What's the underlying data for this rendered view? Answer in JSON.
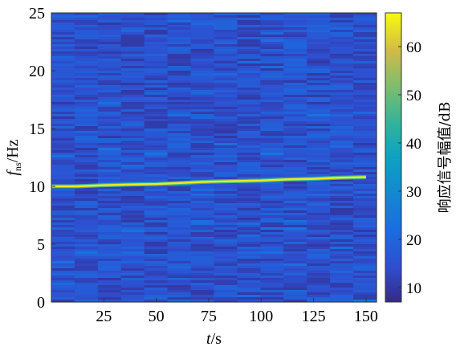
{
  "chart_data": {
    "type": "heatmap",
    "title": "",
    "xlabel_italic": "t",
    "xlabel_rest": "/s",
    "ylabel_italic": "f",
    "ylabel_sub": "ns",
    "ylabel_rest": "/Hz",
    "xlim": [
      0,
      155
    ],
    "ylim": [
      0,
      25
    ],
    "x_ticks": [
      25,
      50,
      75,
      100,
      125,
      150
    ],
    "x_tick_labels": [
      "25",
      "50",
      "75",
      "100",
      "125",
      "150"
    ],
    "y_ticks": [
      0,
      5,
      10,
      15,
      20,
      25
    ],
    "y_tick_labels": [
      "0",
      "5",
      "10",
      "15",
      "20",
      "25"
    ],
    "colorbar": {
      "label": "响应信号幅值/dB",
      "range": [
        7,
        67
      ],
      "ticks": [
        10,
        20,
        30,
        40,
        50,
        60
      ],
      "tick_labels": [
        "10",
        "20",
        "30",
        "40",
        "50",
        "60"
      ],
      "colormap": "parula"
    },
    "background_level_db": 15,
    "frequency_ridge": {
      "t": [
        0,
        12,
        25,
        37,
        50,
        62,
        75,
        87,
        100,
        112,
        125,
        137,
        150
      ],
      "f": [
        10.0,
        10.0,
        10.1,
        10.15,
        10.2,
        10.3,
        10.4,
        10.45,
        10.5,
        10.6,
        10.65,
        10.75,
        10.8
      ],
      "amplitude_db": 65
    }
  }
}
